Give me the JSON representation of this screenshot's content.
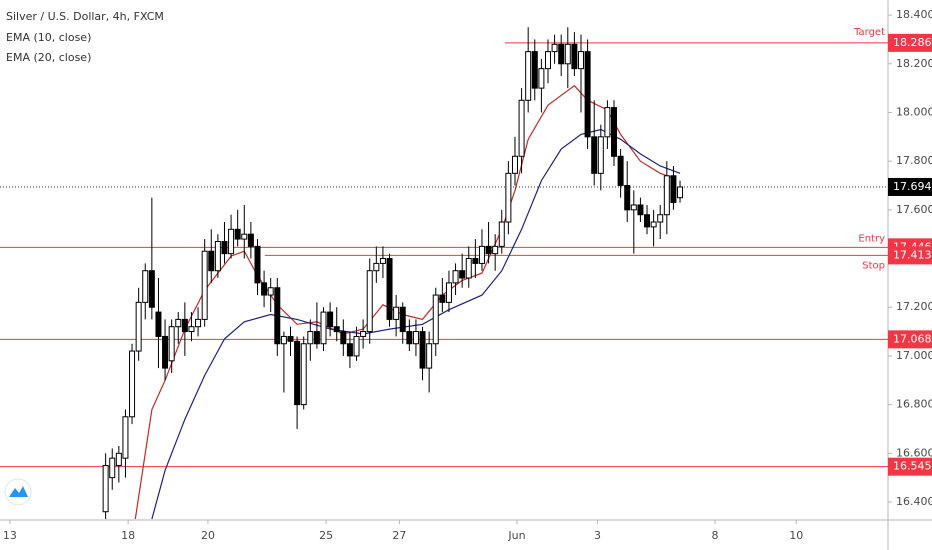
{
  "chart_data": {
    "type": "candlestick",
    "title": "Silver / U.S. Dollar, 4h, FXCM",
    "xlim": [
      0,
      134.5
    ],
    "ylim": [
      16.326,
      18.462
    ],
    "xticks": [
      {
        "value": 1.5,
        "label": "13"
      },
      {
        "value": 19.4,
        "label": "18"
      },
      {
        "value": 31.5,
        "label": "20"
      },
      {
        "value": 49.4,
        "label": "25"
      },
      {
        "value": 60.5,
        "label": "27"
      },
      {
        "value": 78.3,
        "label": "Jun"
      },
      {
        "value": 90.5,
        "label": "3"
      },
      {
        "value": 108.3,
        "label": "8"
      },
      {
        "value": 120.6,
        "label": "10"
      }
    ],
    "yticks": [
      {
        "value": 18.4,
        "label": "18.400"
      },
      {
        "value": 18.2,
        "label": "18.200"
      },
      {
        "value": 18.0,
        "label": "18.000"
      },
      {
        "value": 17.8,
        "label": "17.800"
      },
      {
        "value": 17.6,
        "label": "17.600"
      },
      {
        "value": 17.2,
        "label": "17.200"
      },
      {
        "value": 17.0,
        "label": "17.000"
      },
      {
        "value": 16.8,
        "label": "16.800"
      },
      {
        "value": 16.6,
        "label": "16.600"
      },
      {
        "value": 16.4,
        "label": "16.400"
      }
    ],
    "up_color": "#ffffff",
    "down_color": "#000000",
    "candles": {
      "x": [
        16,
        17,
        18,
        19,
        20,
        21,
        22,
        23,
        24,
        25,
        26,
        27,
        28,
        29,
        30,
        31,
        32,
        33,
        34,
        35,
        36,
        37,
        38,
        39,
        40,
        41,
        42,
        43,
        44,
        45,
        46,
        47,
        48,
        49,
        50,
        51,
        52,
        53,
        54,
        55,
        56,
        57,
        58,
        59,
        60,
        61,
        62,
        63,
        64,
        65,
        66,
        67,
        68,
        69,
        70,
        71,
        72,
        73,
        74,
        75,
        76,
        77,
        78,
        79,
        80,
        81,
        82,
        83,
        84,
        85,
        86,
        87,
        88,
        89,
        90,
        91,
        92,
        93,
        94,
        95,
        96,
        97,
        98,
        99,
        100,
        101,
        102,
        103
      ],
      "open": [
        16.36,
        16.5,
        16.55,
        16.58,
        16.75,
        17.02,
        17.22,
        17.35,
        17.18,
        17.08,
        16.98,
        17.12,
        17.15,
        17.1,
        17.12,
        17.15,
        17.43,
        17.35,
        17.47,
        17.42,
        17.52,
        17.48,
        17.5,
        17.45,
        17.3,
        17.25,
        17.28,
        17.05,
        17.08,
        17.06,
        16.8,
        17.05,
        17.1,
        17.05,
        17.18,
        17.12,
        17.1,
        17.05,
        17.0,
        17.08,
        17.1,
        17.35,
        17.38,
        17.4,
        17.15,
        17.2,
        17.1,
        17.05,
        17.1,
        16.95,
        17.05,
        17.25,
        17.22,
        17.3,
        17.35,
        17.32,
        17.4,
        17.38,
        17.45,
        17.42,
        17.45,
        17.55,
        17.75,
        17.82,
        18.05,
        18.25,
        18.1,
        18.18,
        18.25,
        18.28,
        18.2,
        18.28,
        18.18,
        18.25,
        17.9,
        17.75,
        17.9,
        18.02,
        17.82,
        17.7,
        17.6,
        17.62,
        17.58,
        17.53,
        17.55,
        17.58,
        17.74,
        17.65
      ],
      "high": [
        16.6,
        16.62,
        16.63,
        16.78,
        17.05,
        17.28,
        17.38,
        17.65,
        17.32,
        17.15,
        17.15,
        17.18,
        17.22,
        17.18,
        17.2,
        17.48,
        17.52,
        17.5,
        17.55,
        17.58,
        17.6,
        17.62,
        17.55,
        17.48,
        17.35,
        17.32,
        17.32,
        17.1,
        17.12,
        17.08,
        17.08,
        17.15,
        17.22,
        17.2,
        17.22,
        17.2,
        17.15,
        17.1,
        17.12,
        17.15,
        17.4,
        17.45,
        17.45,
        17.42,
        17.25,
        17.22,
        17.15,
        17.15,
        17.12,
        17.1,
        17.28,
        17.32,
        17.35,
        17.38,
        17.42,
        17.45,
        17.48,
        17.52,
        17.55,
        17.5,
        17.6,
        17.8,
        17.9,
        18.1,
        18.35,
        18.3,
        18.22,
        18.3,
        18.32,
        18.32,
        18.35,
        18.33,
        18.32,
        18.3,
        18.05,
        17.95,
        18.05,
        18.05,
        17.85,
        17.8,
        17.68,
        17.65,
        17.62,
        17.6,
        17.62,
        17.8,
        17.78,
        17.72
      ],
      "low": [
        16.33,
        16.45,
        16.48,
        16.5,
        16.72,
        16.98,
        17.15,
        17.15,
        16.95,
        16.9,
        16.93,
        17.05,
        17.0,
        17.06,
        17.08,
        17.12,
        17.3,
        17.32,
        17.38,
        17.4,
        17.45,
        17.4,
        17.4,
        17.25,
        17.2,
        17.18,
        17.0,
        16.85,
        17.0,
        16.7,
        16.78,
        16.98,
        17.03,
        17.02,
        17.08,
        17.06,
        17.0,
        16.95,
        16.98,
        17.03,
        17.05,
        17.3,
        17.32,
        17.12,
        17.08,
        17.05,
        17.02,
        17.0,
        16.9,
        16.85,
        17.0,
        17.18,
        17.18,
        17.25,
        17.28,
        17.28,
        17.32,
        17.35,
        17.38,
        17.35,
        17.42,
        17.5,
        17.7,
        17.75,
        18.0,
        18.05,
        18.0,
        18.12,
        18.2,
        18.15,
        18.1,
        18.15,
        18.0,
        17.85,
        17.7,
        17.68,
        17.85,
        17.78,
        17.65,
        17.55,
        17.42,
        17.55,
        17.5,
        17.45,
        17.48,
        17.5,
        17.6,
        17.63
      ],
      "close": [
        16.55,
        16.58,
        16.6,
        16.75,
        17.02,
        17.22,
        17.35,
        17.2,
        17.08,
        16.95,
        17.12,
        17.15,
        17.1,
        17.12,
        17.15,
        17.43,
        17.35,
        17.47,
        17.42,
        17.52,
        17.48,
        17.5,
        17.45,
        17.3,
        17.25,
        17.28,
        17.05,
        17.08,
        17.06,
        16.8,
        17.05,
        17.1,
        17.05,
        17.18,
        17.12,
        17.1,
        17.05,
        17.0,
        17.08,
        17.1,
        17.35,
        17.38,
        17.4,
        17.15,
        17.2,
        17.1,
        17.05,
        17.1,
        16.95,
        17.05,
        17.25,
        17.22,
        17.3,
        17.35,
        17.32,
        17.4,
        17.38,
        17.45,
        17.42,
        17.45,
        17.55,
        17.75,
        17.82,
        18.05,
        18.25,
        18.1,
        18.18,
        18.25,
        18.28,
        18.2,
        18.28,
        18.18,
        18.25,
        17.9,
        17.75,
        17.9,
        18.02,
        17.82,
        17.7,
        17.6,
        17.62,
        17.58,
        17.53,
        17.55,
        17.58,
        17.74,
        17.63,
        17.694
      ]
    },
    "series": [
      {
        "name": "EMA (10, close)",
        "color": "#c62828",
        "x": [
          20.5,
          23,
          25,
          28,
          31,
          35,
          37,
          39,
          42,
          45,
          48,
          52,
          55,
          58,
          61,
          64,
          67,
          70,
          73,
          76,
          78,
          80,
          83,
          87,
          89,
          92,
          94,
          97,
          100,
          102
        ],
        "values": [
          16.33,
          16.78,
          16.9,
          17.11,
          17.27,
          17.41,
          17.43,
          17.33,
          17.21,
          17.13,
          17.14,
          17.09,
          17.11,
          17.21,
          17.17,
          17.15,
          17.25,
          17.31,
          17.34,
          17.52,
          17.68,
          17.89,
          18.03,
          18.11,
          18.05,
          18.01,
          17.91,
          17.8,
          17.75,
          17.73
        ]
      },
      {
        "name": "EMA (20, close)",
        "color": "#1a237e",
        "x": [
          23,
          25,
          28,
          31,
          34,
          37,
          41,
          45,
          50,
          55,
          59,
          64,
          68,
          73,
          76,
          79,
          82,
          85,
          88,
          91,
          94,
          97,
          100,
          103
        ],
        "values": [
          16.33,
          16.53,
          16.74,
          16.92,
          17.07,
          17.14,
          17.17,
          17.15,
          17.11,
          17.09,
          17.11,
          17.13,
          17.19,
          17.25,
          17.35,
          17.52,
          17.72,
          17.85,
          17.91,
          17.93,
          17.89,
          17.83,
          17.78,
          17.75
        ]
      }
    ],
    "levels": [
      {
        "name": "Target",
        "value": 18.286,
        "color": "#f23645"
      },
      {
        "name": "Entry",
        "value": 17.446,
        "color": "#f23645"
      },
      {
        "name": "Stop",
        "value": 17.413,
        "color": "#f23645"
      },
      {
        "value": 17.068,
        "color": "#f23645"
      },
      {
        "value": 16.545,
        "color": "#f23645"
      }
    ],
    "last_price": 17.694
  }
}
